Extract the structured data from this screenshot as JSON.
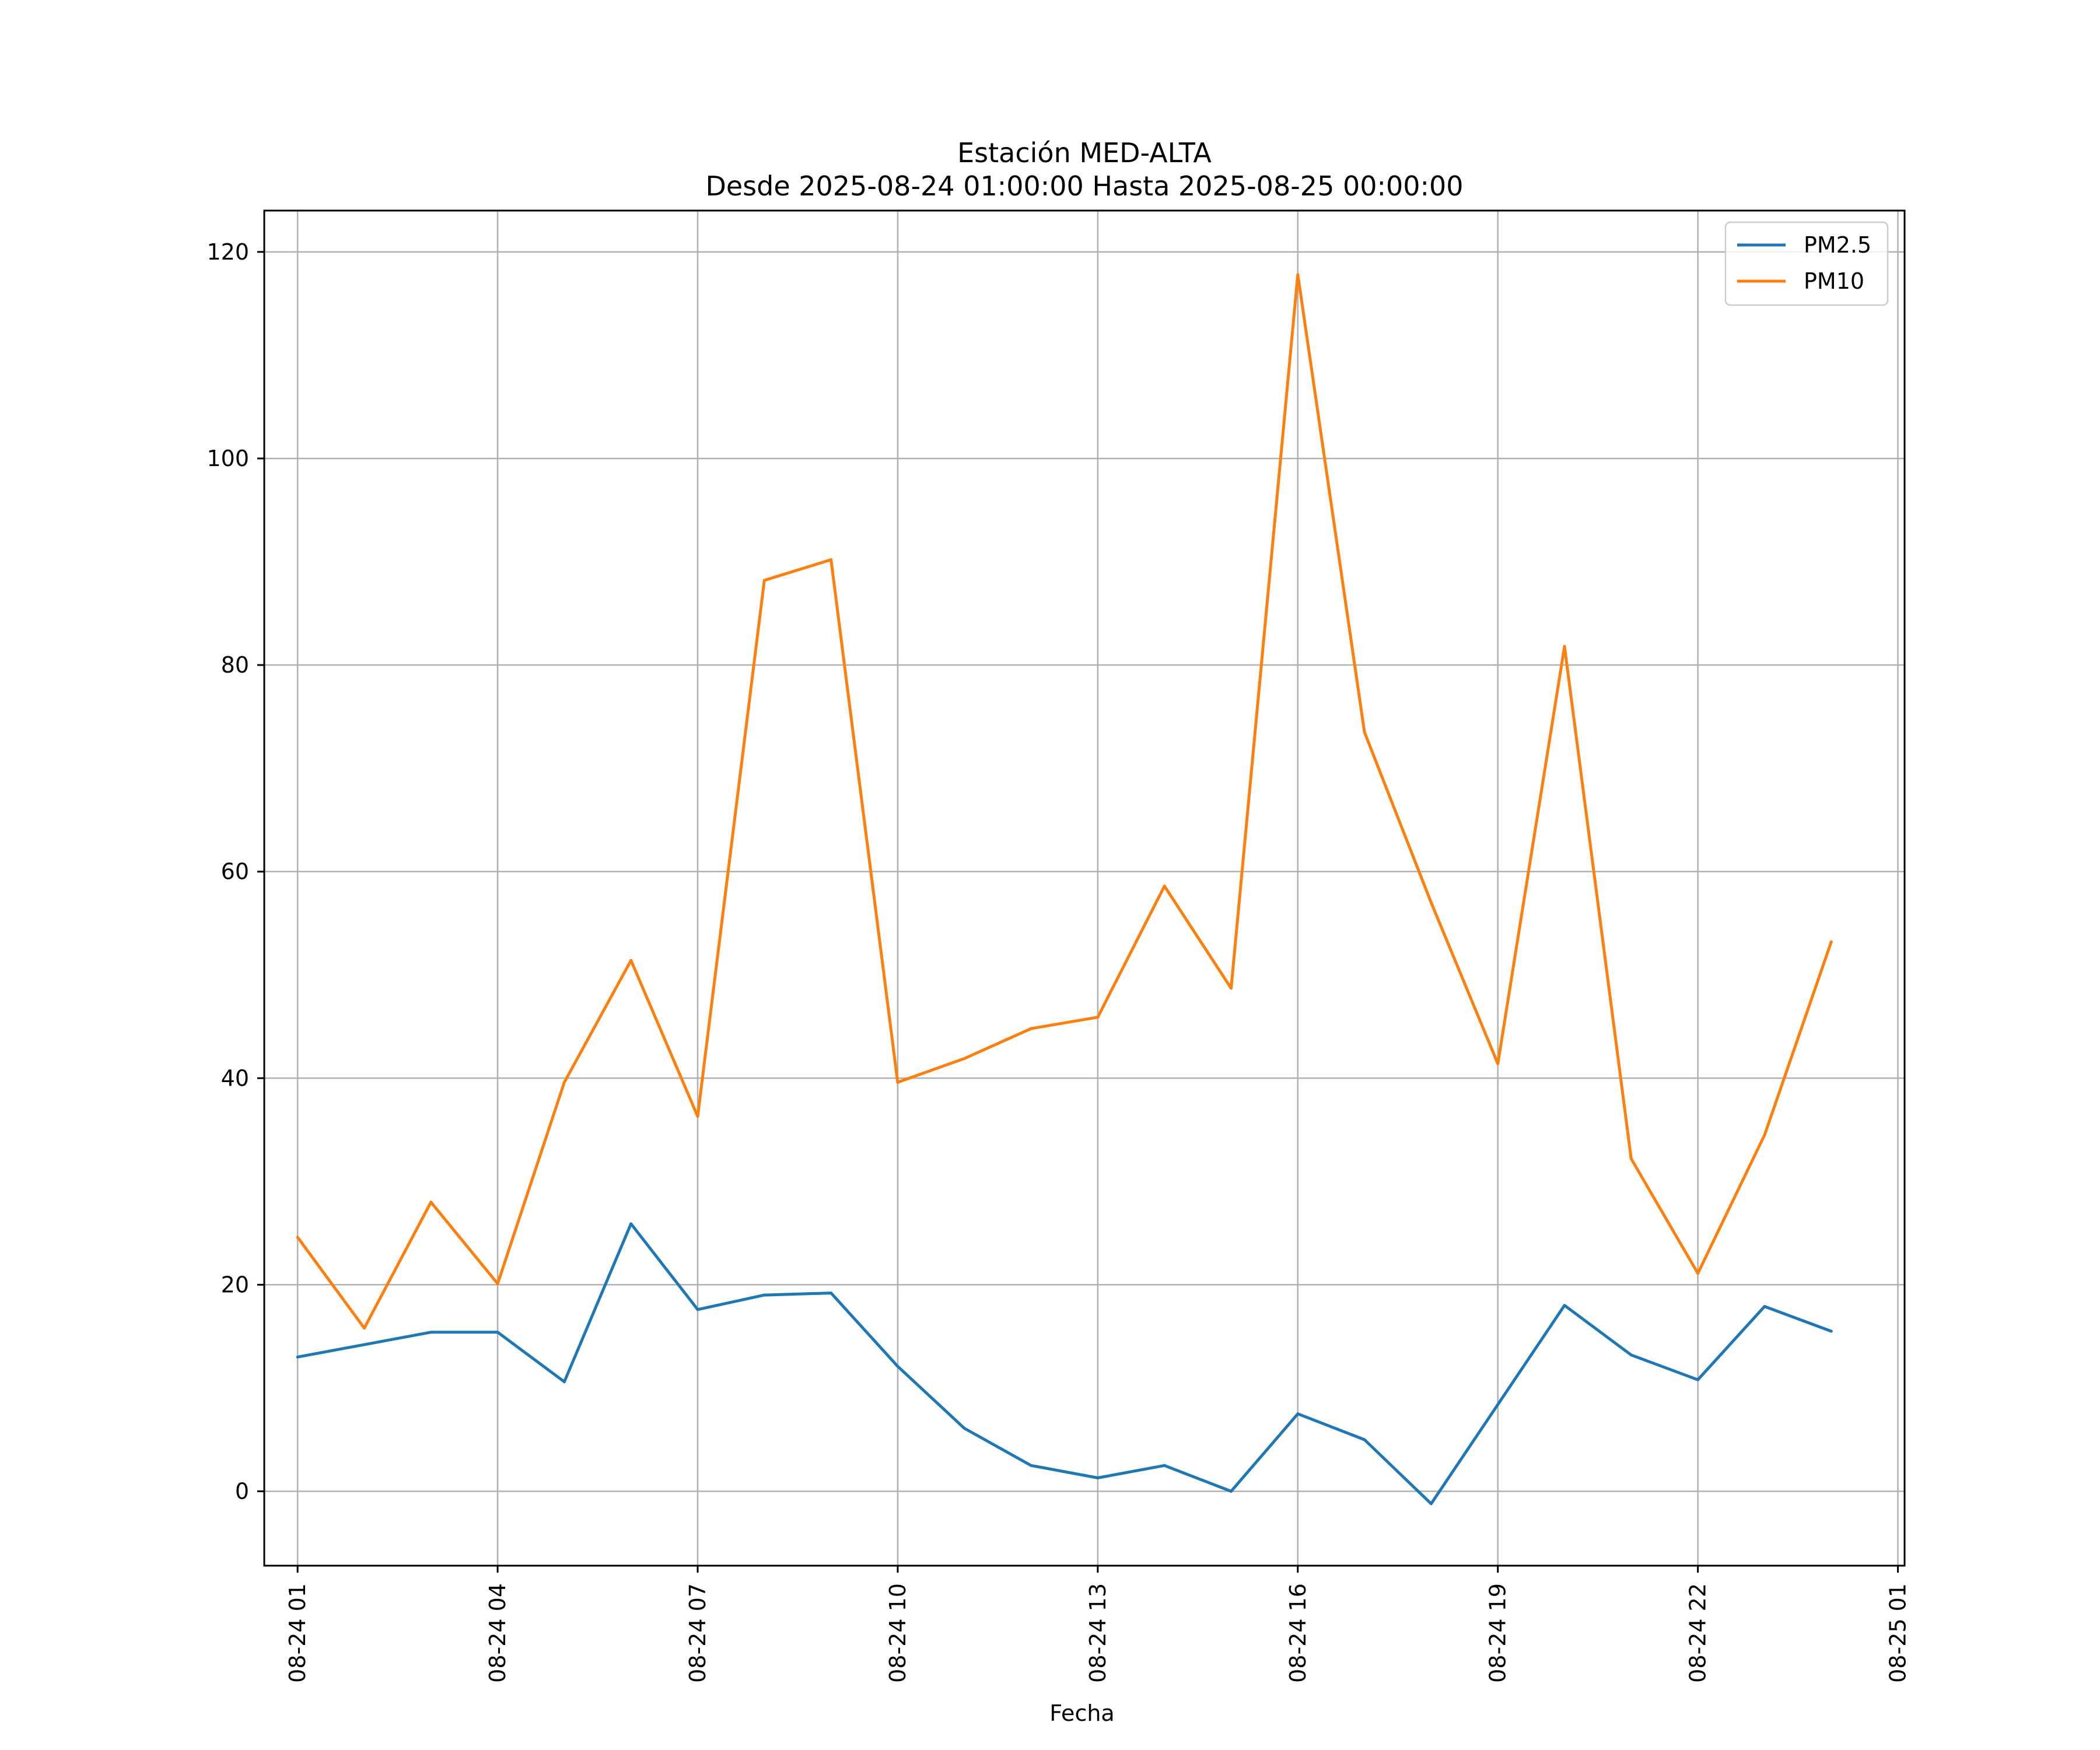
{
  "chart_data": {
    "type": "line",
    "title": "Estación MED-ALTA",
    "subtitle": "Desde 2025-08-24 01:00:00 Hasta 2025-08-25 00:00:00",
    "xlabel": "Fecha",
    "ylabel": "",
    "x_hours": [
      0,
      1,
      2,
      3,
      4,
      5,
      6,
      7,
      8,
      9,
      10,
      11,
      12,
      13,
      14,
      15,
      16,
      17,
      18,
      19,
      20,
      21,
      22,
      23
    ],
    "x_start": "2025-08-24 01:00:00",
    "xlim_hours": [
      -0.5,
      24.1
    ],
    "ylim": [
      -7.2,
      124.0
    ],
    "x_ticks": [
      {
        "hour": 0,
        "label": "08-24 01"
      },
      {
        "hour": 3,
        "label": "08-24 04"
      },
      {
        "hour": 6,
        "label": "08-24 07"
      },
      {
        "hour": 9,
        "label": "08-24 10"
      },
      {
        "hour": 12,
        "label": "08-24 13"
      },
      {
        "hour": 15,
        "label": "08-24 16"
      },
      {
        "hour": 18,
        "label": "08-24 19"
      },
      {
        "hour": 21,
        "label": "08-24 22"
      },
      {
        "hour": 24,
        "label": "08-25 01"
      }
    ],
    "y_ticks": [
      {
        "value": 0,
        "label": "0"
      },
      {
        "value": 20,
        "label": "20"
      },
      {
        "value": 40,
        "label": "40"
      },
      {
        "value": 60,
        "label": "60"
      },
      {
        "value": 80,
        "label": "80"
      },
      {
        "value": 100,
        "label": "100"
      },
      {
        "value": 120,
        "label": "120"
      }
    ],
    "grid": true,
    "legend_position": "top-right",
    "series": [
      {
        "name": "PM2.5",
        "color": "#1f77b4",
        "values": [
          13.0,
          14.2,
          15.4,
          15.4,
          10.6,
          25.9,
          17.6,
          19.0,
          19.2,
          12.1,
          6.1,
          2.5,
          1.3,
          2.5,
          0.0,
          7.5,
          5.0,
          -1.2,
          8.4,
          18.0,
          13.2,
          10.8,
          17.9,
          15.5
        ]
      },
      {
        "name": "PM10",
        "color": "#ff7f0e",
        "values": [
          24.6,
          15.8,
          28.0,
          20.1,
          39.6,
          51.4,
          36.3,
          88.2,
          90.2,
          39.6,
          41.9,
          44.8,
          45.9,
          58.6,
          48.7,
          117.8,
          73.5,
          57.0,
          41.4,
          81.8,
          32.2,
          21.1,
          34.5,
          53.2
        ]
      }
    ]
  }
}
